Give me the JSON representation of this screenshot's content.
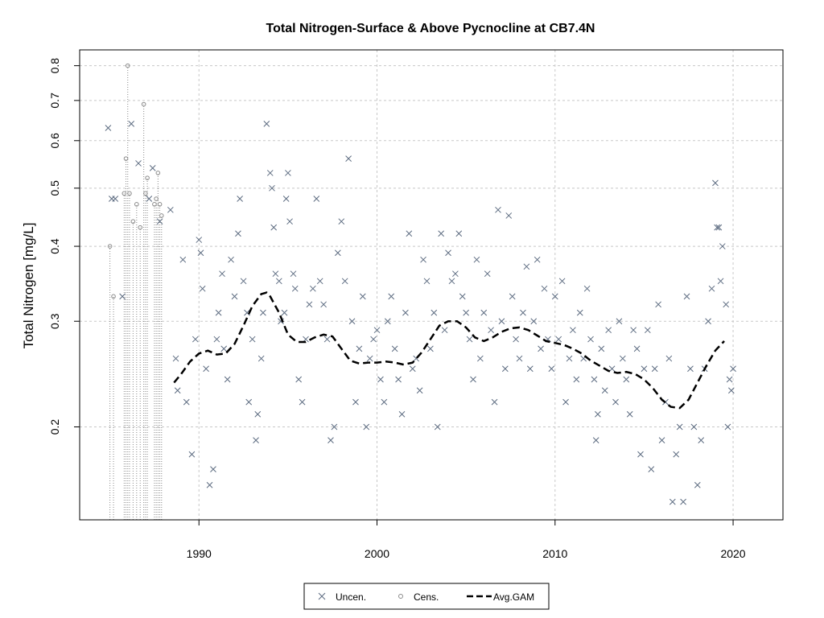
{
  "chart_data": {
    "type": "scatter",
    "title": "Total Nitrogen-Surface & Above Pycnocline at CB7.4N",
    "xlabel": "",
    "ylabel": "Total Nitrogen [mg/L]",
    "y_scale": "log",
    "xlim": [
      1983.3,
      2022.8
    ],
    "ylim": [
      0.14,
      0.85
    ],
    "x_ticks": [
      1990,
      2000,
      2010,
      2020
    ],
    "y_ticks": [
      0.2,
      0.3,
      0.4,
      0.5,
      0.6,
      0.7,
      0.8
    ],
    "grid": true,
    "legend_position": "bottom",
    "legend": [
      {
        "label": "Uncen.",
        "marker": "x"
      },
      {
        "label": "Cens.",
        "marker": "circle"
      },
      {
        "label": "Avg.GAM",
        "marker": "dashed-line"
      }
    ],
    "colors": {
      "points": "#5c6b80",
      "gam": "#000000",
      "grid": "#c8c8c8",
      "censored": "#8a8a8a"
    },
    "series": [
      {
        "name": "Uncen.",
        "marker": "x",
        "points": [
          [
            1984.9,
            0.63
          ],
          [
            1985.1,
            0.48
          ],
          [
            1985.3,
            0.48
          ],
          [
            1985.7,
            0.33
          ],
          [
            1986.2,
            0.64
          ],
          [
            1986.6,
            0.55
          ],
          [
            1987.2,
            0.48
          ],
          [
            1987.4,
            0.54
          ],
          [
            1987.8,
            0.44
          ],
          [
            1988.4,
            0.46
          ],
          [
            1988.7,
            0.26
          ],
          [
            1988.8,
            0.23
          ],
          [
            1989.1,
            0.38
          ],
          [
            1989.3,
            0.22
          ],
          [
            1989.6,
            0.18
          ],
          [
            1989.8,
            0.28
          ],
          [
            1990.0,
            0.41
          ],
          [
            1990.1,
            0.39
          ],
          [
            1990.2,
            0.34
          ],
          [
            1990.4,
            0.25
          ],
          [
            1990.6,
            0.16
          ],
          [
            1990.8,
            0.17
          ],
          [
            1991.0,
            0.28
          ],
          [
            1991.1,
            0.31
          ],
          [
            1991.3,
            0.36
          ],
          [
            1991.4,
            0.27
          ],
          [
            1991.6,
            0.24
          ],
          [
            1991.8,
            0.38
          ],
          [
            1992.0,
            0.33
          ],
          [
            1992.2,
            0.42
          ],
          [
            1992.3,
            0.48
          ],
          [
            1992.5,
            0.35
          ],
          [
            1992.7,
            0.31
          ],
          [
            1992.8,
            0.22
          ],
          [
            1993.0,
            0.28
          ],
          [
            1993.2,
            0.19
          ],
          [
            1993.3,
            0.21
          ],
          [
            1993.5,
            0.26
          ],
          [
            1993.6,
            0.31
          ],
          [
            1993.8,
            0.64
          ],
          [
            1994.0,
            0.53
          ],
          [
            1994.1,
            0.5
          ],
          [
            1994.2,
            0.43
          ],
          [
            1994.3,
            0.36
          ],
          [
            1994.5,
            0.35
          ],
          [
            1994.6,
            0.3
          ],
          [
            1994.8,
            0.31
          ],
          [
            1994.9,
            0.48
          ],
          [
            1995.0,
            0.53
          ],
          [
            1995.1,
            0.44
          ],
          [
            1995.3,
            0.36
          ],
          [
            1995.4,
            0.34
          ],
          [
            1995.6,
            0.24
          ],
          [
            1995.8,
            0.22
          ],
          [
            1996.0,
            0.28
          ],
          [
            1996.2,
            0.32
          ],
          [
            1996.4,
            0.34
          ],
          [
            1996.6,
            0.48
          ],
          [
            1996.8,
            0.35
          ],
          [
            1997.0,
            0.32
          ],
          [
            1997.2,
            0.28
          ],
          [
            1997.4,
            0.19
          ],
          [
            1997.6,
            0.2
          ],
          [
            1997.8,
            0.39
          ],
          [
            1998.0,
            0.44
          ],
          [
            1998.2,
            0.35
          ],
          [
            1998.4,
            0.56
          ],
          [
            1998.6,
            0.3
          ],
          [
            1998.8,
            0.22
          ],
          [
            1999.0,
            0.27
          ],
          [
            1999.2,
            0.33
          ],
          [
            1999.4,
            0.2
          ],
          [
            1999.6,
            0.26
          ],
          [
            1999.8,
            0.28
          ],
          [
            2000.0,
            0.29
          ],
          [
            2000.2,
            0.24
          ],
          [
            2000.4,
            0.22
          ],
          [
            2000.6,
            0.3
          ],
          [
            2000.8,
            0.33
          ],
          [
            2001.0,
            0.27
          ],
          [
            2001.2,
            0.24
          ],
          [
            2001.4,
            0.21
          ],
          [
            2001.6,
            0.31
          ],
          [
            2001.8,
            0.42
          ],
          [
            2002.0,
            0.25
          ],
          [
            2002.2,
            0.26
          ],
          [
            2002.4,
            0.23
          ],
          [
            2002.6,
            0.38
          ],
          [
            2002.8,
            0.35
          ],
          [
            2003.0,
            0.27
          ],
          [
            2003.2,
            0.31
          ],
          [
            2003.4,
            0.2
          ],
          [
            2003.6,
            0.42
          ],
          [
            2003.8,
            0.29
          ],
          [
            2004.0,
            0.39
          ],
          [
            2004.2,
            0.35
          ],
          [
            2004.4,
            0.36
          ],
          [
            2004.6,
            0.42
          ],
          [
            2004.8,
            0.33
          ],
          [
            2005.0,
            0.31
          ],
          [
            2005.2,
            0.28
          ],
          [
            2005.4,
            0.24
          ],
          [
            2005.6,
            0.38
          ],
          [
            2005.8,
            0.26
          ],
          [
            2006.0,
            0.31
          ],
          [
            2006.2,
            0.36
          ],
          [
            2006.4,
            0.29
          ],
          [
            2006.6,
            0.22
          ],
          [
            2006.8,
            0.46
          ],
          [
            2007.0,
            0.3
          ],
          [
            2007.2,
            0.25
          ],
          [
            2007.4,
            0.45
          ],
          [
            2007.6,
            0.33
          ],
          [
            2007.8,
            0.28
          ],
          [
            2008.0,
            0.26
          ],
          [
            2008.2,
            0.31
          ],
          [
            2008.4,
            0.37
          ],
          [
            2008.6,
            0.25
          ],
          [
            2008.8,
            0.3
          ],
          [
            2009.0,
            0.38
          ],
          [
            2009.2,
            0.27
          ],
          [
            2009.4,
            0.34
          ],
          [
            2009.6,
            0.28
          ],
          [
            2009.8,
            0.25
          ],
          [
            2010.0,
            0.33
          ],
          [
            2010.2,
            0.28
          ],
          [
            2010.4,
            0.35
          ],
          [
            2010.6,
            0.22
          ],
          [
            2010.8,
            0.26
          ],
          [
            2011.0,
            0.29
          ],
          [
            2011.2,
            0.24
          ],
          [
            2011.4,
            0.31
          ],
          [
            2011.6,
            0.26
          ],
          [
            2011.8,
            0.34
          ],
          [
            2012.0,
            0.28
          ],
          [
            2012.2,
            0.24
          ],
          [
            2012.4,
            0.21
          ],
          [
            2012.6,
            0.27
          ],
          [
            2012.8,
            0.23
          ],
          [
            2013.0,
            0.29
          ],
          [
            2013.2,
            0.25
          ],
          [
            2013.4,
            0.22
          ],
          [
            2013.6,
            0.3
          ],
          [
            2013.8,
            0.26
          ],
          [
            2014.0,
            0.24
          ],
          [
            2014.2,
            0.21
          ],
          [
            2014.4,
            0.29
          ],
          [
            2014.6,
            0.27
          ],
          [
            2014.8,
            0.18
          ],
          [
            2015.0,
            0.25
          ],
          [
            2015.2,
            0.29
          ],
          [
            2015.4,
            0.17
          ],
          [
            2015.6,
            0.25
          ],
          [
            2015.8,
            0.32
          ],
          [
            2016.0,
            0.19
          ],
          [
            2016.2,
            0.22
          ],
          [
            2016.4,
            0.26
          ],
          [
            2016.6,
            0.15
          ],
          [
            2016.8,
            0.18
          ],
          [
            2017.0,
            0.2
          ],
          [
            2017.2,
            0.15
          ],
          [
            2017.4,
            0.33
          ],
          [
            2017.6,
            0.25
          ],
          [
            2017.8,
            0.2
          ],
          [
            2018.0,
            0.16
          ],
          [
            2018.2,
            0.19
          ],
          [
            2018.4,
            0.25
          ],
          [
            2018.6,
            0.3
          ],
          [
            2018.8,
            0.34
          ],
          [
            2019.0,
            0.51
          ],
          [
            2019.1,
            0.43
          ],
          [
            2019.2,
            0.43
          ],
          [
            2019.3,
            0.35
          ],
          [
            2019.4,
            0.4
          ],
          [
            2019.6,
            0.32
          ],
          [
            2019.8,
            0.24
          ],
          [
            2019.9,
            0.23
          ],
          [
            2020.0,
            0.25
          ],
          [
            2019.7,
            0.2
          ],
          [
            2012.3,
            0.19
          ]
        ]
      },
      {
        "name": "Cens.",
        "marker": "circle",
        "points": [
          [
            1985.0,
            0.4
          ],
          [
            1985.2,
            0.33
          ],
          [
            1985.8,
            0.49
          ],
          [
            1985.9,
            0.56
          ],
          [
            1986.0,
            0.8
          ],
          [
            1986.1,
            0.49
          ],
          [
            1986.3,
            0.44
          ],
          [
            1986.5,
            0.47
          ],
          [
            1986.7,
            0.43
          ],
          [
            1986.9,
            0.69
          ],
          [
            1987.0,
            0.49
          ],
          [
            1987.1,
            0.52
          ],
          [
            1987.5,
            0.47
          ],
          [
            1987.6,
            0.48
          ],
          [
            1987.7,
            0.53
          ],
          [
            1987.8,
            0.47
          ],
          [
            1987.9,
            0.45
          ]
        ]
      },
      {
        "name": "Avg.GAM",
        "marker": "dashed-line",
        "points": [
          [
            1988.6,
            0.237
          ],
          [
            1989.0,
            0.245
          ],
          [
            1989.5,
            0.257
          ],
          [
            1990.0,
            0.265
          ],
          [
            1990.5,
            0.268
          ],
          [
            1991.0,
            0.264
          ],
          [
            1991.5,
            0.265
          ],
          [
            1992.0,
            0.275
          ],
          [
            1992.5,
            0.295
          ],
          [
            1993.0,
            0.318
          ],
          [
            1993.5,
            0.333
          ],
          [
            1993.8,
            0.335
          ],
          [
            1994.0,
            0.33
          ],
          [
            1994.5,
            0.31
          ],
          [
            1995.0,
            0.285
          ],
          [
            1995.5,
            0.277
          ],
          [
            1996.0,
            0.277
          ],
          [
            1996.5,
            0.282
          ],
          [
            1997.0,
            0.285
          ],
          [
            1997.5,
            0.283
          ],
          [
            1998.0,
            0.27
          ],
          [
            1998.5,
            0.258
          ],
          [
            1999.0,
            0.255
          ],
          [
            1999.5,
            0.256
          ],
          [
            2000.0,
            0.256
          ],
          [
            2000.5,
            0.257
          ],
          [
            2001.0,
            0.256
          ],
          [
            2001.5,
            0.254
          ],
          [
            2002.0,
            0.256
          ],
          [
            2002.5,
            0.266
          ],
          [
            2003.0,
            0.28
          ],
          [
            2003.5,
            0.295
          ],
          [
            2004.0,
            0.3
          ],
          [
            2004.5,
            0.3
          ],
          [
            2005.0,
            0.293
          ],
          [
            2005.5,
            0.282
          ],
          [
            2006.0,
            0.278
          ],
          [
            2006.5,
            0.282
          ],
          [
            2007.0,
            0.288
          ],
          [
            2007.5,
            0.292
          ],
          [
            2008.0,
            0.293
          ],
          [
            2008.5,
            0.29
          ],
          [
            2009.0,
            0.284
          ],
          [
            2009.5,
            0.278
          ],
          [
            2010.0,
            0.276
          ],
          [
            2010.5,
            0.274
          ],
          [
            2011.0,
            0.27
          ],
          [
            2011.5,
            0.265
          ],
          [
            2012.0,
            0.258
          ],
          [
            2012.5,
            0.253
          ],
          [
            2013.0,
            0.248
          ],
          [
            2013.5,
            0.246
          ],
          [
            2014.0,
            0.247
          ],
          [
            2014.5,
            0.245
          ],
          [
            2015.0,
            0.24
          ],
          [
            2015.5,
            0.232
          ],
          [
            2016.0,
            0.222
          ],
          [
            2016.5,
            0.216
          ],
          [
            2017.0,
            0.215
          ],
          [
            2017.5,
            0.222
          ],
          [
            2018.0,
            0.237
          ],
          [
            2018.5,
            0.253
          ],
          [
            2019.0,
            0.268
          ],
          [
            2019.5,
            0.278
          ]
        ]
      }
    ]
  }
}
